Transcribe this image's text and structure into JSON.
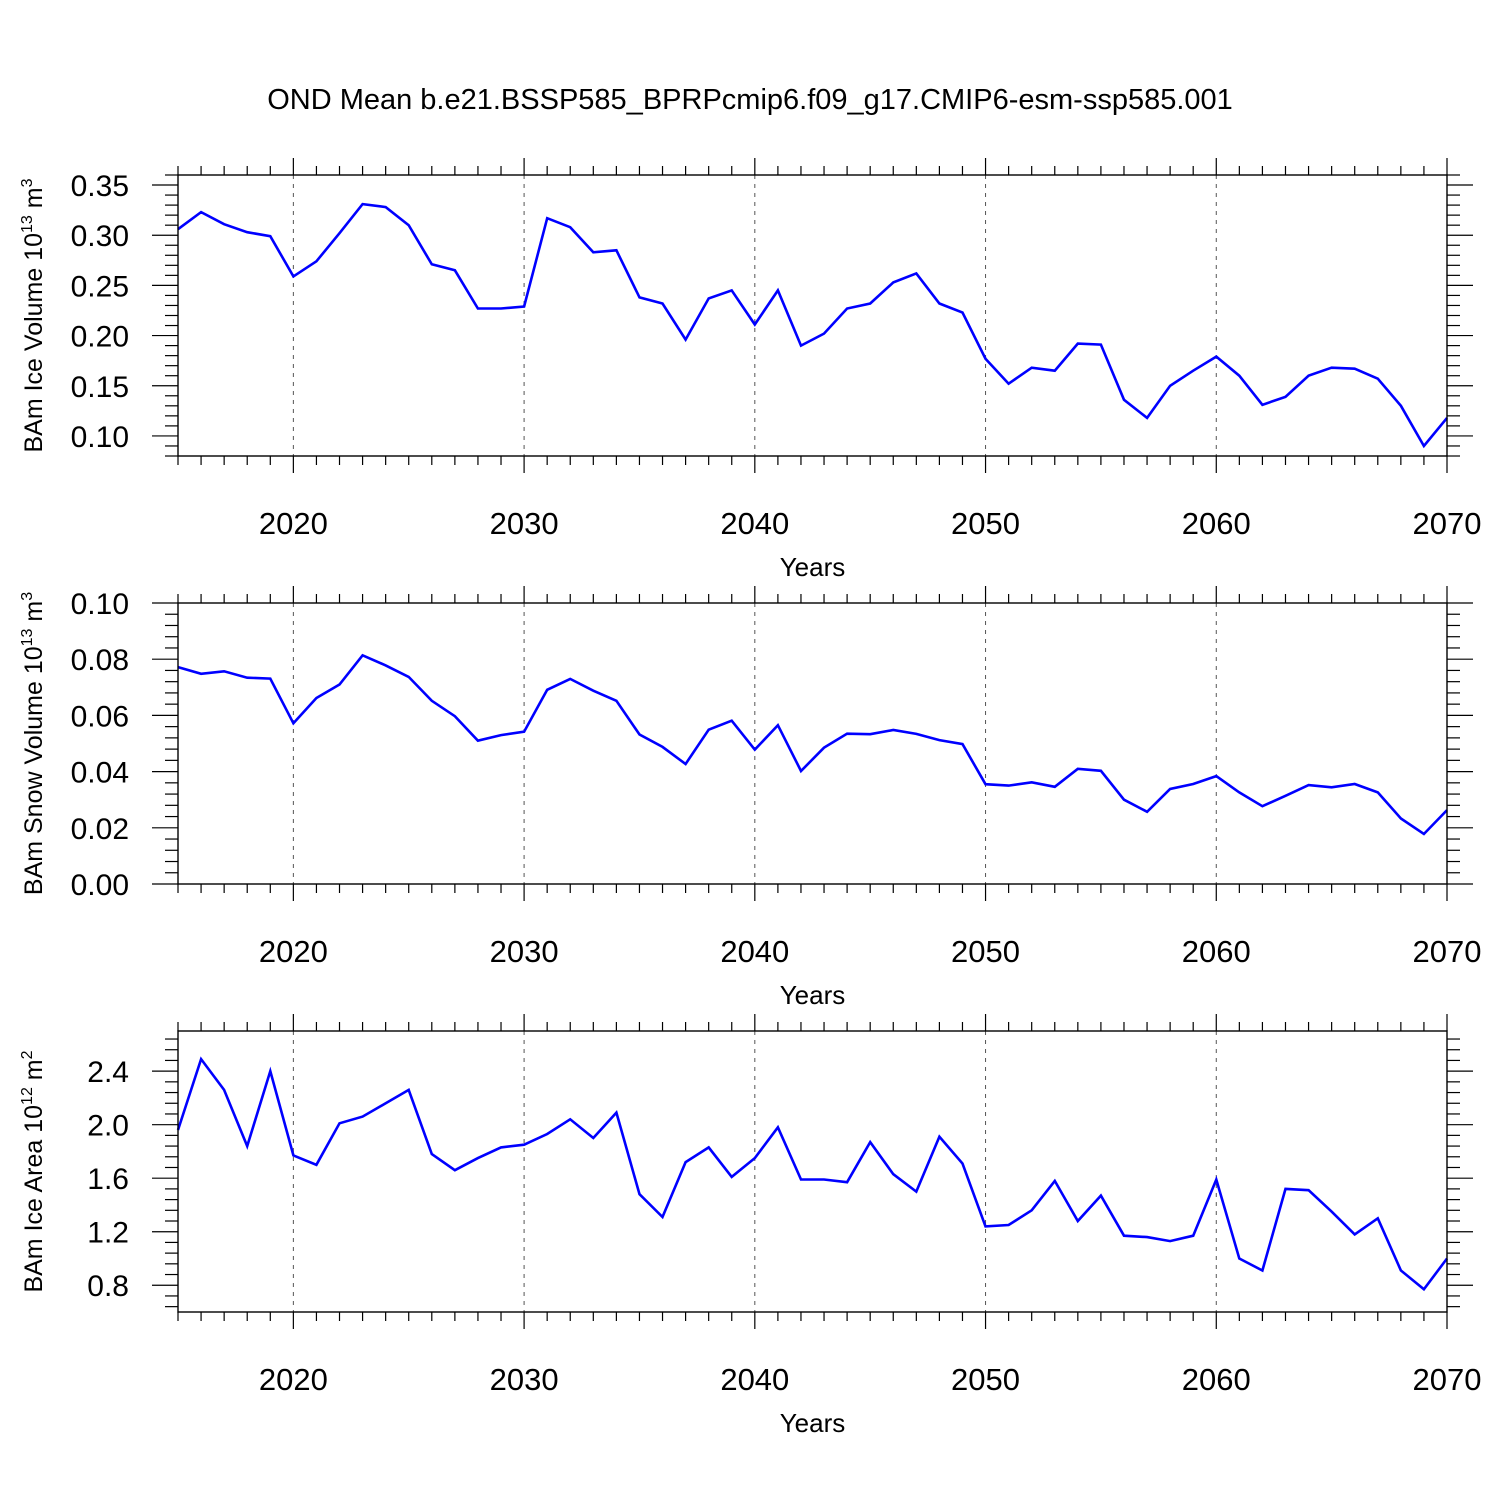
{
  "title": "OND Mean b.e21.BSSP585_BPRPcmip6.f09_g17.CMIP6-esm-ssp585.001",
  "colors": {
    "line": "#0000ff",
    "axis": "#000000",
    "grid": "#555555"
  },
  "chart_data": [
    {
      "type": "line",
      "ylabel": {
        "text": "BAm Ice Volume 10",
        "sup": "13",
        "unit": "m",
        "unit_sup": "3"
      },
      "xlabel": "Years",
      "xlim": [
        2015,
        2070
      ],
      "ylim": [
        0.08,
        0.36
      ],
      "x_ticks": [
        2020,
        2030,
        2040,
        2050,
        2060,
        2070
      ],
      "y_ticks": [
        "0.10",
        "0.15",
        "0.20",
        "0.25",
        "0.30",
        "0.35"
      ],
      "grid": "vertical-dashed",
      "x": [
        2015,
        2016,
        2017,
        2018,
        2019,
        2020,
        2021,
        2022,
        2023,
        2024,
        2025,
        2026,
        2027,
        2028,
        2029,
        2030,
        2031,
        2032,
        2033,
        2034,
        2035,
        2036,
        2037,
        2038,
        2039,
        2040,
        2041,
        2042,
        2043,
        2044,
        2045,
        2046,
        2047,
        2048,
        2049,
        2050,
        2051,
        2052,
        2053,
        2054,
        2055,
        2056,
        2057,
        2058,
        2059,
        2060,
        2061,
        2062,
        2063,
        2064,
        2065,
        2066,
        2067,
        2068,
        2069,
        2070
      ],
      "values": [
        0.306,
        0.323,
        0.311,
        0.303,
        0.299,
        0.259,
        0.274,
        0.302,
        0.331,
        0.328,
        0.31,
        0.271,
        0.265,
        0.227,
        0.227,
        0.229,
        0.317,
        0.308,
        0.283,
        0.285,
        0.238,
        0.232,
        0.196,
        0.237,
        0.245,
        0.211,
        0.245,
        0.19,
        0.202,
        0.227,
        0.232,
        0.253,
        0.262,
        0.232,
        0.223,
        0.177,
        0.152,
        0.168,
        0.165,
        0.192,
        0.191,
        0.136,
        0.118,
        0.15,
        0.165,
        0.179,
        0.16,
        0.131,
        0.139,
        0.16,
        0.168,
        0.167,
        0.157,
        0.13,
        0.09,
        0.118
      ]
    },
    {
      "type": "line",
      "ylabel": {
        "text": "BAm Snow Volume 10",
        "sup": "13",
        "unit": "m",
        "unit_sup": "3"
      },
      "xlabel": "Years",
      "xlim": [
        2015,
        2070
      ],
      "ylim": [
        0.0,
        0.1
      ],
      "x_ticks": [
        2020,
        2030,
        2040,
        2050,
        2060,
        2070
      ],
      "y_ticks": [
        "0.00",
        "0.02",
        "0.04",
        "0.06",
        "0.08",
        "0.10"
      ],
      "grid": "vertical-dashed",
      "x": [
        2015,
        2016,
        2017,
        2018,
        2019,
        2020,
        2021,
        2022,
        2023,
        2024,
        2025,
        2026,
        2027,
        2028,
        2029,
        2030,
        2031,
        2032,
        2033,
        2034,
        2035,
        2036,
        2037,
        2038,
        2039,
        2040,
        2041,
        2042,
        2043,
        2044,
        2045,
        2046,
        2047,
        2048,
        2049,
        2050,
        2051,
        2052,
        2053,
        2054,
        2055,
        2056,
        2057,
        2058,
        2059,
        2060,
        2061,
        2062,
        2063,
        2064,
        2065,
        2066,
        2067,
        2068,
        2069,
        2070
      ],
      "values": [
        0.0772,
        0.0748,
        0.0757,
        0.0734,
        0.0731,
        0.0572,
        0.0662,
        0.071,
        0.0814,
        0.0778,
        0.0737,
        0.0652,
        0.0597,
        0.051,
        0.053,
        0.0542,
        0.0691,
        0.073,
        0.0688,
        0.0652,
        0.0532,
        0.0488,
        0.0427,
        0.0549,
        0.0581,
        0.0478,
        0.0565,
        0.0402,
        0.0485,
        0.0535,
        0.0533,
        0.0548,
        0.0534,
        0.0512,
        0.0498,
        0.0355,
        0.035,
        0.0362,
        0.0346,
        0.041,
        0.0403,
        0.03,
        0.0257,
        0.0338,
        0.0356,
        0.0384,
        0.0326,
        0.0277,
        0.0314,
        0.0352,
        0.0344,
        0.0356,
        0.0326,
        0.0233,
        0.0178,
        0.0263
      ]
    },
    {
      "type": "line",
      "ylabel": {
        "text": "BAm Ice Area 10",
        "sup": "12",
        "unit": "m",
        "unit_sup": "2"
      },
      "xlabel": "Years",
      "xlim": [
        2015,
        2070
      ],
      "ylim": [
        0.6,
        2.7
      ],
      "x_ticks": [
        2020,
        2030,
        2040,
        2050,
        2060,
        2070
      ],
      "y_ticks": [
        "0.8",
        "1.2",
        "1.6",
        "2.0",
        "2.4"
      ],
      "grid": "vertical-dashed",
      "x": [
        2015,
        2016,
        2017,
        2018,
        2019,
        2020,
        2021,
        2022,
        2023,
        2024,
        2025,
        2026,
        2027,
        2028,
        2029,
        2030,
        2031,
        2032,
        2033,
        2034,
        2035,
        2036,
        2037,
        2038,
        2039,
        2040,
        2041,
        2042,
        2043,
        2044,
        2045,
        2046,
        2047,
        2048,
        2049,
        2050,
        2051,
        2052,
        2053,
        2054,
        2055,
        2056,
        2057,
        2058,
        2059,
        2060,
        2061,
        2062,
        2063,
        2064,
        2065,
        2066,
        2067,
        2068,
        2069,
        2070
      ],
      "values": [
        1.96,
        2.49,
        2.26,
        1.84,
        2.4,
        1.77,
        1.7,
        2.01,
        2.06,
        2.16,
        2.26,
        1.78,
        1.66,
        1.75,
        1.83,
        1.85,
        1.93,
        2.04,
        1.9,
        2.09,
        1.48,
        1.31,
        1.72,
        1.83,
        1.61,
        1.75,
        1.98,
        1.59,
        1.59,
        1.57,
        1.87,
        1.63,
        1.5,
        1.91,
        1.71,
        1.24,
        1.25,
        1.36,
        1.58,
        1.28,
        1.47,
        1.17,
        1.16,
        1.13,
        1.17,
        1.59,
        1.0,
        0.91,
        1.52,
        1.51,
        1.35,
        1.18,
        1.3,
        0.91,
        0.77,
        1.0
      ]
    }
  ]
}
